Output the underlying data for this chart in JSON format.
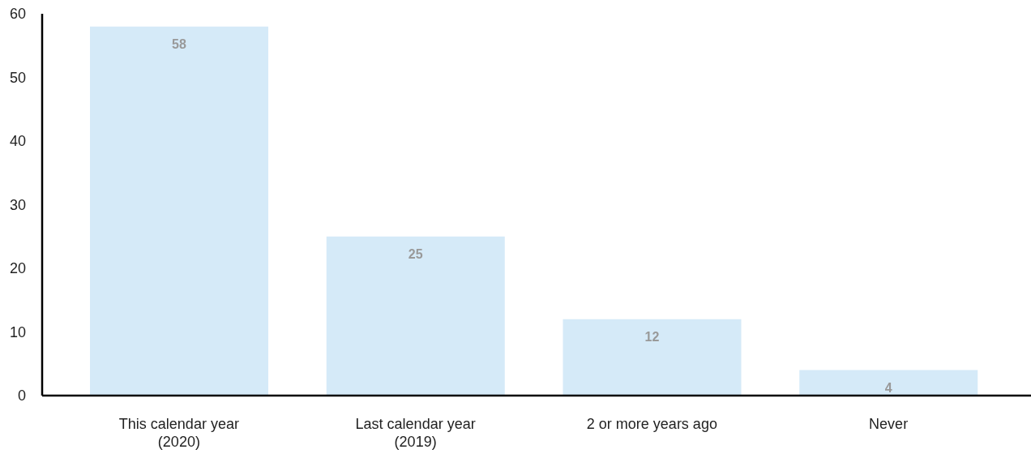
{
  "chart_data": {
    "type": "bar",
    "categories": [
      "This calendar year (2020)",
      "Last calendar year (2019)",
      "2 or more years ago",
      "Never"
    ],
    "values": [
      58,
      25,
      12,
      4
    ],
    "color": "#d5eaf8",
    "ylim": [
      0,
      60
    ],
    "yticks": [
      0,
      10,
      20,
      30,
      40,
      50,
      60
    ],
    "data_labels": true
  }
}
